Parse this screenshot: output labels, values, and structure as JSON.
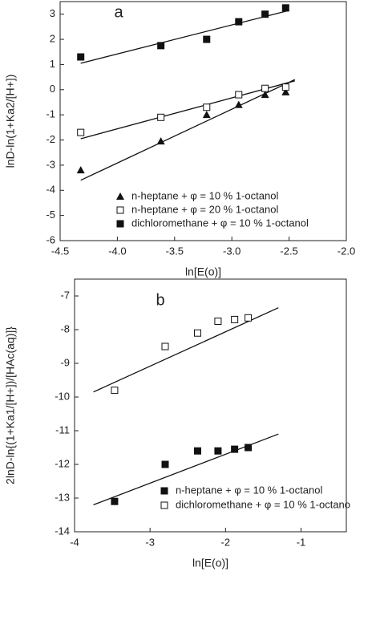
{
  "chart_data": [
    {
      "type": "scatter",
      "label": "a",
      "xlabel": "ln[E(o)]",
      "ylabel": "lnD-ln(1+Ka2/[H+])",
      "xlim": [
        -4.5,
        -2.0
      ],
      "xticks": [
        -4.5,
        {
          "value": -4,
          "label": "-4.0"
        },
        -3.5,
        {
          "value": -3,
          "label": "-3.0"
        },
        -2.5,
        {
          "value": -2,
          "label": "-2.0"
        }
      ],
      "ylim": [
        -6,
        3.5
      ],
      "yticks": [
        -6,
        -5,
        -4,
        -3,
        -2,
        -1,
        0,
        1,
        2,
        3
      ],
      "legend": "lower right",
      "series": [
        {
          "name": "n-heptane + φ = 10 % 1-octanol",
          "marker": "triangle",
          "color": "#111",
          "x": [
            -4.32,
            -3.62,
            -3.22,
            -2.94,
            -2.71,
            -2.53
          ],
          "values": [
            -3.2,
            -2.05,
            -1.0,
            -0.6,
            -0.2,
            -0.1
          ],
          "fit": {
            "x": [
              -4.32,
              -2.45
            ],
            "y": [
              -3.6,
              0.4
            ]
          }
        },
        {
          "name": "n-heptane + φ = 20 % 1-octanol",
          "marker": "square-open",
          "color": "#111",
          "x": [
            -4.32,
            -3.62,
            -3.22,
            -2.94,
            -2.71,
            -2.53
          ],
          "values": [
            -1.7,
            -1.1,
            -0.7,
            -0.2,
            0.05,
            0.1
          ],
          "fit": {
            "x": [
              -4.32,
              -2.45
            ],
            "y": [
              -1.95,
              0.35
            ]
          }
        },
        {
          "name": "dichloromethane + φ = 10 % 1-octanol",
          "marker": "square",
          "color": "#111",
          "x": [
            -4.32,
            -3.62,
            -3.22,
            -2.94,
            -2.71,
            -2.53
          ],
          "values": [
            1.3,
            1.75,
            2.0,
            2.7,
            3.0,
            3.25
          ],
          "fit": {
            "x": [
              -4.32,
              -2.5
            ],
            "y": [
              1.05,
              3.15
            ]
          }
        }
      ]
    },
    {
      "type": "scatter",
      "label": "b",
      "xlabel": "ln[E(o)]",
      "ylabel": "2lnD-ln{(1+Ka1/[H+])/[HAc(aq)]}",
      "xlim": [
        -4,
        -0.4
      ],
      "xticks": [
        -4,
        -3,
        -2,
        -1
      ],
      "ylim": [
        -14,
        -6.5
      ],
      "yticks": [
        -14,
        -13,
        -12,
        -11,
        -10,
        -9,
        -8,
        -7
      ],
      "legend": "lower right",
      "series": [
        {
          "name": "n-heptane + φ = 10 % 1-octanol",
          "marker": "square",
          "color": "#111",
          "x": [
            -3.47,
            -2.8,
            -2.37,
            -2.1,
            -1.88,
            -1.7
          ],
          "values": [
            -13.1,
            -12.0,
            -11.6,
            -11.6,
            -11.55,
            -11.5
          ],
          "fit": {
            "x": [
              -3.75,
              -1.3
            ],
            "y": [
              -13.2,
              -11.1
            ]
          }
        },
        {
          "name": "dichloromethane + φ = 10 % 1-octano",
          "marker": "square-open",
          "color": "#111",
          "x": [
            -3.47,
            -2.8,
            -2.37,
            -2.1,
            -1.88,
            -1.7
          ],
          "values": [
            -9.8,
            -8.5,
            -8.1,
            -7.75,
            -7.7,
            -7.65
          ],
          "fit": {
            "x": [
              -3.75,
              -1.3
            ],
            "y": [
              -9.85,
              -7.35
            ]
          }
        }
      ]
    }
  ]
}
